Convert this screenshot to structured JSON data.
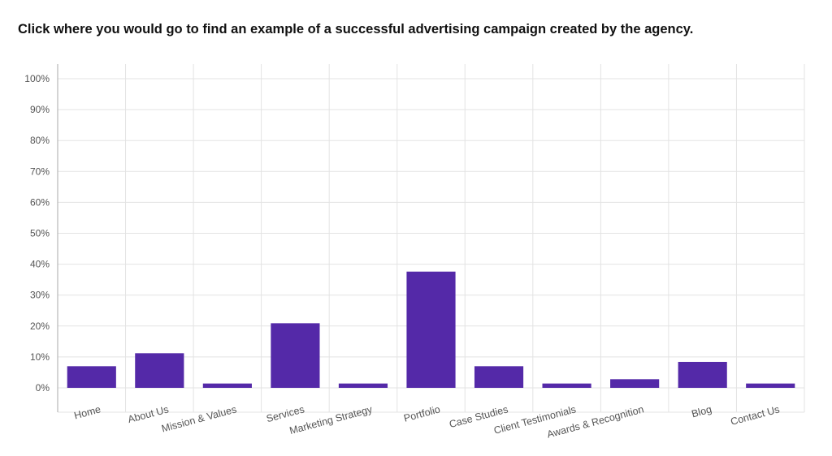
{
  "question": "Click where you would go to find an example of a successful advertising campaign created by the agency.",
  "chart_data": {
    "type": "bar",
    "categories": [
      "Home",
      "About Us",
      "Mission & Values",
      "Services",
      "Marketing Strategy",
      "Portfolio",
      "Case Studies",
      "Client Testimonials",
      "Awards & Recognition",
      "Blog",
      "Contact Us"
    ],
    "values": [
      7,
      11.2,
      1.4,
      20.9,
      1.4,
      37.6,
      7,
      1.4,
      2.8,
      8.4,
      1.4
    ],
    "yticks": [
      "0%",
      "10%",
      "20%",
      "30%",
      "40%",
      "50%",
      "60%",
      "70%",
      "80%",
      "90%",
      "100%"
    ],
    "ylim": [
      0,
      100
    ],
    "grid": true,
    "bar_color": "#5429a8",
    "grid_color": "#e3e3e3",
    "axis_color": "#aaaaaa"
  }
}
